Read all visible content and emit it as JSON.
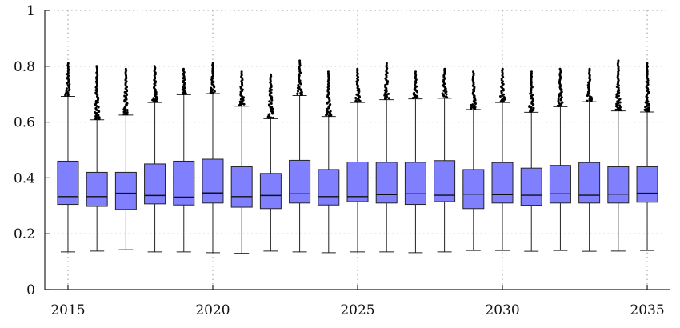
{
  "chart_data": {
    "type": "box",
    "title": "",
    "xlabel": "",
    "ylabel": "",
    "ylim": [
      0,
      1
    ],
    "yticks": [
      0,
      0.2,
      0.4,
      0.6,
      0.8,
      1
    ],
    "ytick_labels": [
      "0",
      "0.2",
      "0.4",
      "0.6",
      "0.8",
      "1"
    ],
    "xlim": [
      2014.2,
      2035.8
    ],
    "xticks": [
      2015,
      2020,
      2025,
      2030,
      2035
    ],
    "xtick_labels": [
      "2015",
      "2020",
      "2025",
      "2030",
      "2035"
    ],
    "grid": true,
    "box_color": "#8080ff",
    "boxes": [
      {
        "x": 2015,
        "min": 0.135,
        "q1": 0.305,
        "median": 0.333,
        "q3": 0.46,
        "max": 0.692,
        "outlier_top": 0.81
      },
      {
        "x": 2016,
        "min": 0.138,
        "q1": 0.298,
        "median": 0.333,
        "q3": 0.42,
        "max": 0.608,
        "outlier_top": 0.8
      },
      {
        "x": 2017,
        "min": 0.143,
        "q1": 0.287,
        "median": 0.345,
        "q3": 0.42,
        "max": 0.625,
        "outlier_top": 0.79
      },
      {
        "x": 2018,
        "min": 0.135,
        "q1": 0.307,
        "median": 0.337,
        "q3": 0.45,
        "max": 0.67,
        "outlier_top": 0.8
      },
      {
        "x": 2019,
        "min": 0.135,
        "q1": 0.303,
        "median": 0.331,
        "q3": 0.46,
        "max": 0.698,
        "outlier_top": 0.79
      },
      {
        "x": 2020,
        "min": 0.132,
        "q1": 0.31,
        "median": 0.346,
        "q3": 0.467,
        "max": 0.702,
        "outlier_top": 0.81
      },
      {
        "x": 2021,
        "min": 0.13,
        "q1": 0.295,
        "median": 0.333,
        "q3": 0.44,
        "max": 0.657,
        "outlier_top": 0.78
      },
      {
        "x": 2022,
        "min": 0.138,
        "q1": 0.29,
        "median": 0.337,
        "q3": 0.416,
        "max": 0.612,
        "outlier_top": 0.77
      },
      {
        "x": 2023,
        "min": 0.135,
        "q1": 0.31,
        "median": 0.343,
        "q3": 0.463,
        "max": 0.695,
        "outlier_top": 0.82
      },
      {
        "x": 2024,
        "min": 0.132,
        "q1": 0.303,
        "median": 0.333,
        "q3": 0.43,
        "max": 0.62,
        "outlier_top": 0.78
      },
      {
        "x": 2025,
        "min": 0.135,
        "q1": 0.315,
        "median": 0.333,
        "q3": 0.457,
        "max": 0.67,
        "outlier_top": 0.79
      },
      {
        "x": 2026,
        "min": 0.135,
        "q1": 0.31,
        "median": 0.34,
        "q3": 0.456,
        "max": 0.68,
        "outlier_top": 0.81
      },
      {
        "x": 2027,
        "min": 0.132,
        "q1": 0.305,
        "median": 0.343,
        "q3": 0.456,
        "max": 0.683,
        "outlier_top": 0.78
      },
      {
        "x": 2028,
        "min": 0.135,
        "q1": 0.315,
        "median": 0.338,
        "q3": 0.462,
        "max": 0.685,
        "outlier_top": 0.79
      },
      {
        "x": 2029,
        "min": 0.14,
        "q1": 0.29,
        "median": 0.342,
        "q3": 0.43,
        "max": 0.645,
        "outlier_top": 0.78
      },
      {
        "x": 2030,
        "min": 0.14,
        "q1": 0.31,
        "median": 0.34,
        "q3": 0.455,
        "max": 0.67,
        "outlier_top": 0.79
      },
      {
        "x": 2031,
        "min": 0.137,
        "q1": 0.302,
        "median": 0.338,
        "q3": 0.435,
        "max": 0.635,
        "outlier_top": 0.78
      },
      {
        "x": 2032,
        "min": 0.14,
        "q1": 0.31,
        "median": 0.343,
        "q3": 0.445,
        "max": 0.655,
        "outlier_top": 0.79
      },
      {
        "x": 2033,
        "min": 0.137,
        "q1": 0.31,
        "median": 0.338,
        "q3": 0.455,
        "max": 0.673,
        "outlier_top": 0.79
      },
      {
        "x": 2034,
        "min": 0.138,
        "q1": 0.31,
        "median": 0.342,
        "q3": 0.44,
        "max": 0.64,
        "outlier_top": 0.82
      },
      {
        "x": 2035,
        "min": 0.14,
        "q1": 0.313,
        "median": 0.345,
        "q3": 0.44,
        "max": 0.636,
        "outlier_top": 0.81
      }
    ]
  }
}
